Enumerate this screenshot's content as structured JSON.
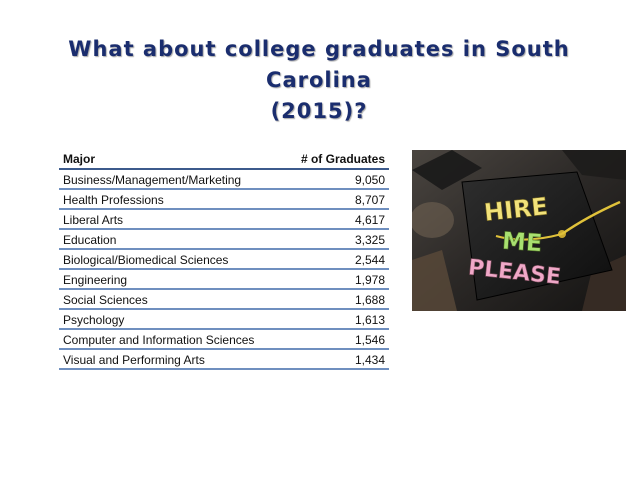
{
  "slide": {
    "title_line1": "What about college graduates in South Carolina",
    "title_line2": "(2015)?"
  },
  "table": {
    "headers": [
      "Major",
      "# of Graduates"
    ],
    "rows": [
      {
        "major": "Business/Management/Marketing",
        "graduates": "9,050"
      },
      {
        "major": "Health Professions",
        "graduates": "8,707"
      },
      {
        "major": "Liberal Arts",
        "graduates": "4,617"
      },
      {
        "major": "Education",
        "graduates": "3,325"
      },
      {
        "major": "Biological/Biomedical Sciences",
        "graduates": "2,544"
      },
      {
        "major": "Engineering",
        "graduates": "1,978"
      },
      {
        "major": "Social Sciences",
        "graduates": "1,688"
      },
      {
        "major": "Psychology",
        "graduates": "1,613"
      },
      {
        "major": "Computer and Information Sciences",
        "graduates": "1,546"
      },
      {
        "major": "Visual and Performing Arts",
        "graduates": "1,434"
      }
    ]
  },
  "photo": {
    "cap_text": [
      "HIRE",
      "ME",
      "PLEASE"
    ],
    "colors": {
      "cap": "#1c1c1c",
      "tassel": "#e0c23a",
      "hire": "#f2e27a",
      "me": "#a8e070",
      "please": "#f0a8c8"
    }
  }
}
